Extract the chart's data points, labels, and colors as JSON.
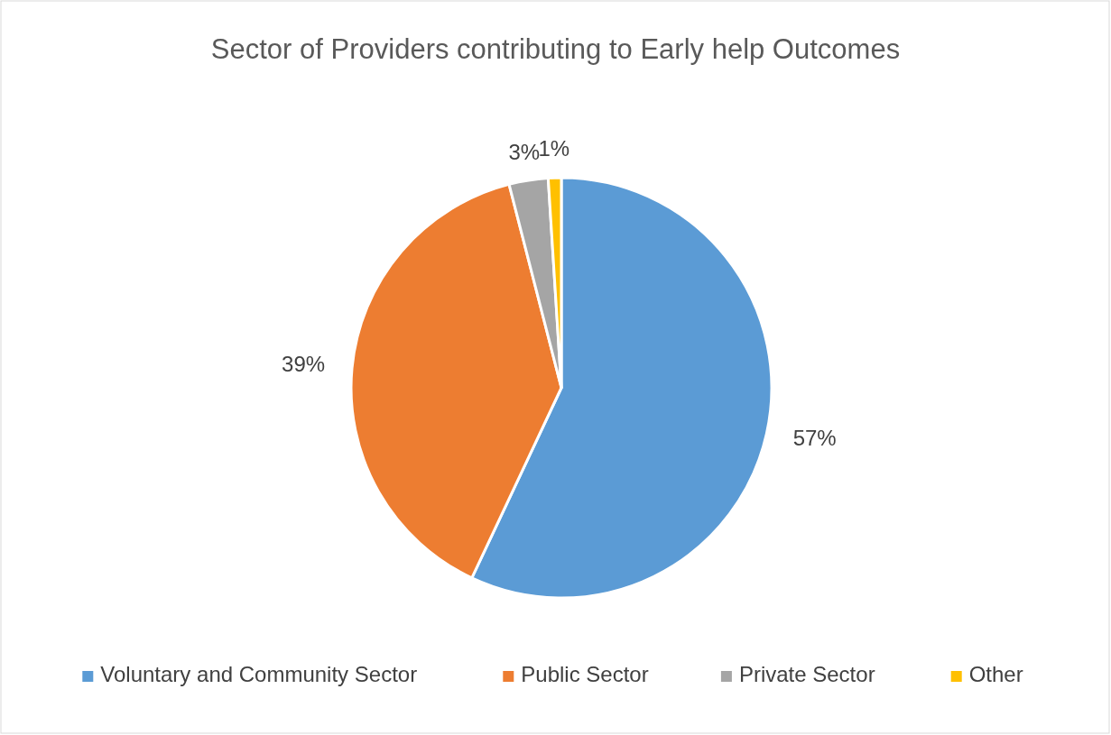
{
  "chart_data": {
    "type": "pie",
    "title": "Sector of Providers contributing to Early help Outcomes",
    "categories": [
      "Voluntary and Community Sector",
      "Public Sector",
      "Private Sector",
      "Other"
    ],
    "values": [
      57,
      39,
      3,
      1
    ],
    "colors": [
      "#5b9bd5",
      "#ed7d31",
      "#a5a5a5",
      "#ffc000"
    ],
    "value_labels": [
      "57%",
      "39%",
      "3%",
      "1%"
    ],
    "legend": "bottom"
  }
}
